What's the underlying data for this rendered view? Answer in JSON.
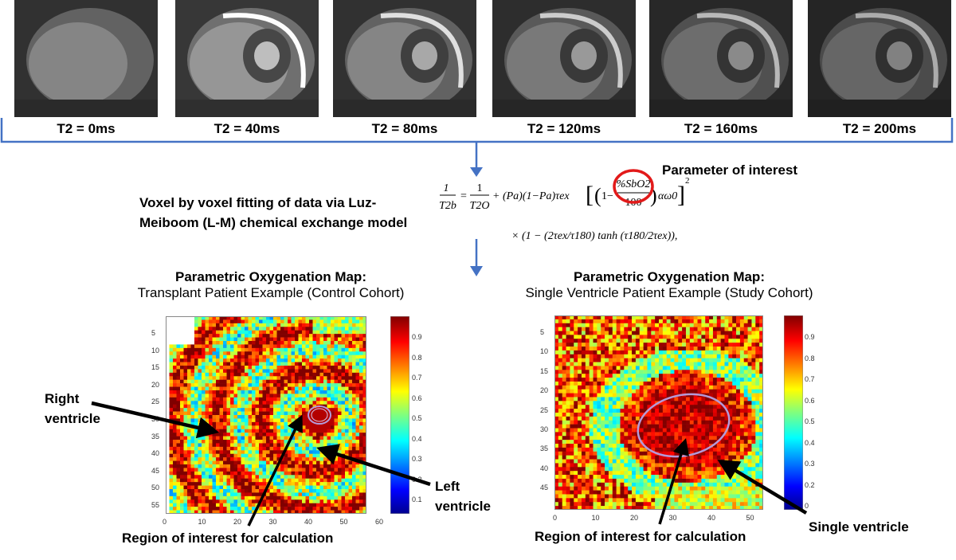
{
  "mri_series": [
    {
      "label": "T2 = 0ms",
      "brightness": 0.55
    },
    {
      "label": "T2 = 40ms",
      "brightness": 0.62
    },
    {
      "label": "T2 = 80ms",
      "brightness": 0.55
    },
    {
      "label": "T2 = 120ms",
      "brightness": 0.5
    },
    {
      "label": "T2 = 160ms",
      "brightness": 0.45
    },
    {
      "label": "T2 = 200ms",
      "brightness": 0.42
    }
  ],
  "method": {
    "text_line1": "Voxel by voxel fitting of data via Luz-",
    "text_line2": "Meiboom (L-M) chemical exchange model",
    "parameter_label": "Parameter of interest"
  },
  "formula": {
    "lhs_num": "1",
    "lhs_den": "T2b",
    "rhs_num": "1",
    "rhs_den": "T2O",
    "term": "+ (Pa)(1−Pa)τex",
    "highlight": "%SbO2",
    "highlight_den": "100",
    "tail": "αω0",
    "line2": "× (1 − (2τex/τ180) tanh (τ180/2τex)),"
  },
  "left_map": {
    "title": "Parametric Oxygenation Map:",
    "subtitle": "Transplant Patient Example (Control Cohort)",
    "y_ticks": [
      "5",
      "10",
      "15",
      "20",
      "25",
      "30",
      "35",
      "40",
      "45",
      "50",
      "55"
    ],
    "x_ticks": [
      "0",
      "10",
      "20",
      "30",
      "40",
      "50",
      "60"
    ],
    "colorbar_ticks": [
      "0.9",
      "0.8",
      "0.7",
      "0.6",
      "0.5",
      "0.4",
      "0.3",
      "0.2",
      "0.1"
    ],
    "annotations": {
      "right_ventricle": [
        "Right",
        "ventricle"
      ],
      "left_ventricle": [
        "Left",
        "ventricle"
      ],
      "roi": "Region of interest for calculation"
    }
  },
  "right_map": {
    "title": "Parametric Oxygenation Map:",
    "subtitle": "Single Ventricle Patient Example (Study Cohort)",
    "y_ticks": [
      "5",
      "10",
      "15",
      "20",
      "25",
      "30",
      "35",
      "40",
      "45"
    ],
    "x_ticks": [
      "0",
      "10",
      "20",
      "30",
      "40",
      "50"
    ],
    "colorbar_ticks": [
      "0.9",
      "0.8",
      "0.7",
      "0.6",
      "0.5",
      "0.4",
      "0.3",
      "0.2",
      "0"
    ],
    "annotations": {
      "single_ventricle": "Single ventricle",
      "roi": "Region of interest for calculation"
    }
  },
  "colors": {
    "arrow_blue": "#4472c4",
    "ellipse": "#b59ad9",
    "highlight_circle": "#e21a1a"
  }
}
